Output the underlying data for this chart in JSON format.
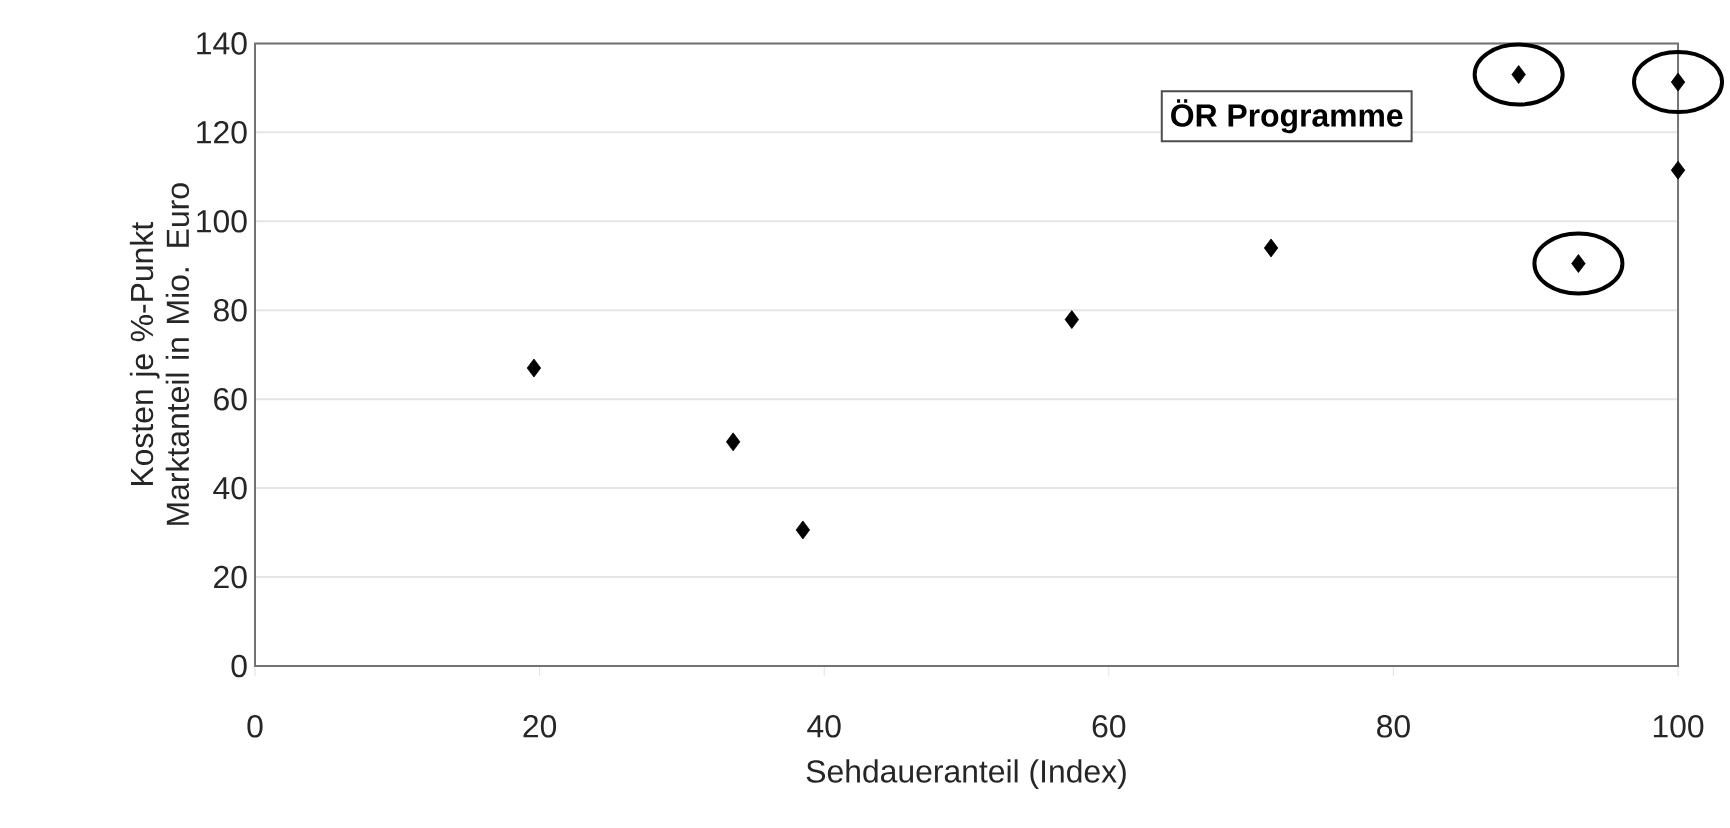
{
  "chart_data": {
    "type": "scatter",
    "xlabel": "Sehdaueranteil (Index)",
    "ylabel": "Kosten je %-Punkt Marktanteil in Mio. Euro",
    "xlim": [
      0,
      100
    ],
    "ylim": [
      0,
      140
    ],
    "xticks": [
      0,
      20,
      40,
      60,
      80,
      100
    ],
    "yticks": [
      0,
      20,
      40,
      60,
      80,
      100,
      120,
      140
    ],
    "grid": "y",
    "marker": "diamond",
    "series": [
      {
        "color": "#000000",
        "x": [
          19.6,
          33.6,
          38.5,
          57.4,
          71.4,
          100
        ],
        "values": [
          67,
          50.4,
          30.6,
          77.9,
          94,
          111.5
        ]
      },
      {
        "name": "ÖR Programme",
        "color": "#000000",
        "x": [
          88.8,
          93,
          100
        ],
        "values": [
          133,
          90.5,
          131.3
        ]
      }
    ]
  }
}
